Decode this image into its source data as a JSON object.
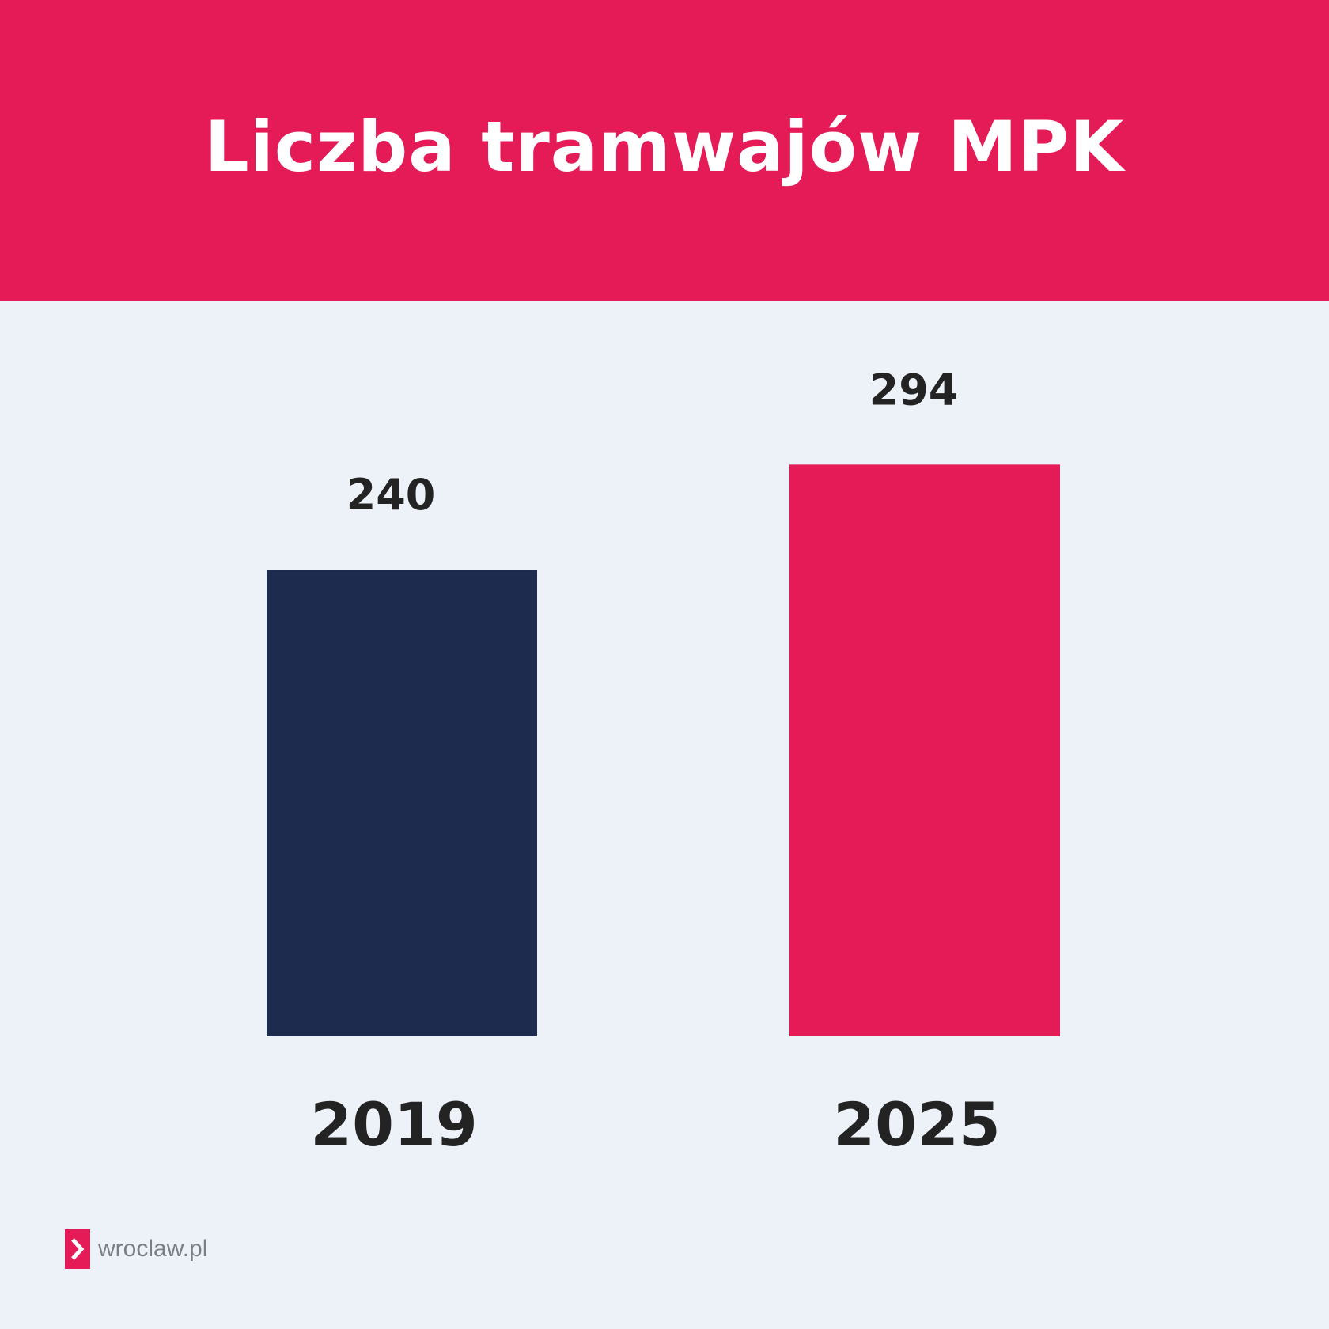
{
  "header": {
    "title": "Liczba tramwajów MPK",
    "background_color": "#e51b57"
  },
  "chart_data": {
    "type": "bar",
    "title": "Liczba tramwajów MPK",
    "categories": [
      "2019",
      "2025"
    ],
    "values": [
      240,
      294
    ],
    "data_labels": [
      "240",
      "294"
    ],
    "bar_colors": [
      "#1d2b4e",
      "#e51b57"
    ],
    "xlabel": "",
    "ylabel": "",
    "grid": false,
    "legend": "none"
  },
  "footer": {
    "logo_text": "wroclaw.pl",
    "logo_icon": "chevron-right-icon",
    "logo_color": "#e51b57"
  }
}
